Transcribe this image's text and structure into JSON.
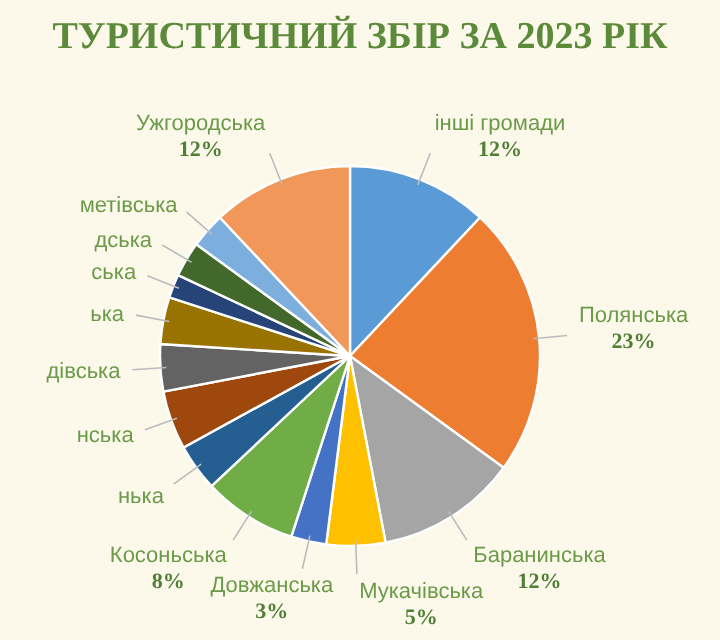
{
  "chart_data": {
    "type": "pie",
    "title": "ТУРИСТИЧНИЙ ЗБІР ЗА 2023 РІК",
    "categories": [
      "інші громади",
      "Полянська",
      "Баранинська",
      "Мукачівська",
      "Довжанська",
      "Косоньська",
      "нька",
      "нська",
      "дівська",
      "ька",
      "ська",
      "дська",
      "метівська",
      "Ужгородська"
    ],
    "values": [
      12,
      23,
      12,
      5,
      3,
      8,
      4,
      5,
      4,
      4,
      2,
      3,
      3,
      12
    ],
    "value_labels": [
      "12%",
      "23%",
      "12%",
      "5%",
      "3%",
      "8%",
      null,
      null,
      null,
      null,
      null,
      null,
      null,
      "12%"
    ],
    "colors": [
      "#5b9bd5",
      "#ed7d31",
      "#a5a5a5",
      "#ffc000",
      "#4472c4",
      "#70ad47",
      "#255e91",
      "#9e480e",
      "#636363",
      "#997300",
      "#264478",
      "#43682b",
      "#7cafdd",
      "#f1975a"
    ]
  }
}
